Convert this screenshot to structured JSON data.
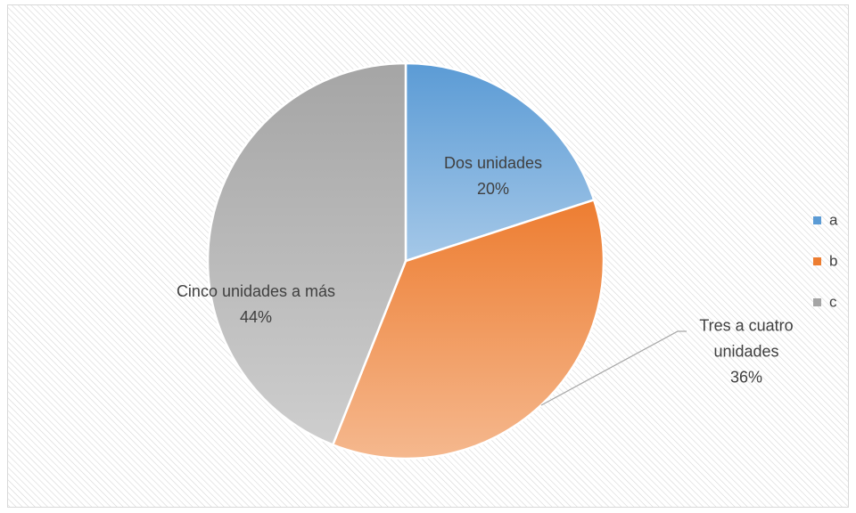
{
  "chart_data": {
    "type": "pie",
    "categories": [
      "a",
      "b",
      "c"
    ],
    "slice_labels": [
      "Dos unidades",
      "Tres a cuatro unidades",
      "Cinco unidades a más"
    ],
    "values": [
      20,
      36,
      44
    ],
    "value_labels": [
      "20%",
      "36%",
      "44%"
    ],
    "colors": [
      "#5b9bd5",
      "#ed7d31",
      "#a5a5a5"
    ],
    "legend": "right"
  }
}
